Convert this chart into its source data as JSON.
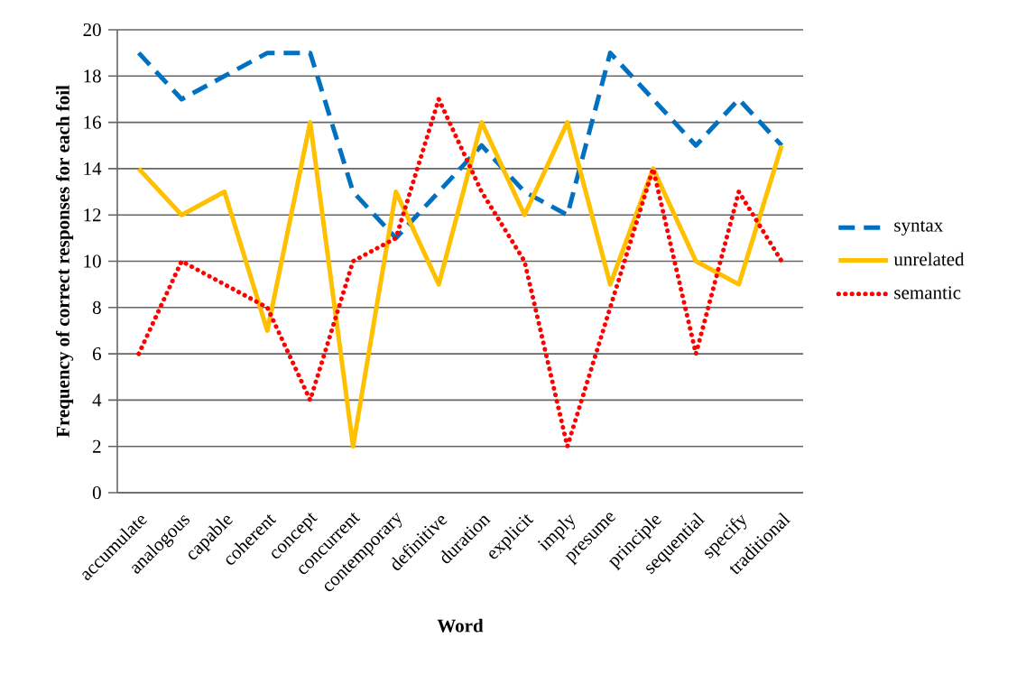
{
  "chart_data": {
    "type": "line",
    "xlabel": "Word",
    "ylabel": "Frequency of correct responses for each foil",
    "categories": [
      "accumulate",
      "analogous",
      "capable",
      "coherent",
      "concept",
      "concurrent",
      "contemporary",
      "definitive",
      "duration",
      "explicit",
      "imply",
      "presume",
      "principle",
      "sequential",
      "specify",
      "traditional"
    ],
    "series": [
      {
        "name": "syntax",
        "color": "#0070c0",
        "line_style": "dashed",
        "values": [
          19,
          17,
          18,
          19,
          19,
          13,
          11,
          13,
          15,
          13,
          12,
          19,
          17,
          15,
          17,
          15
        ]
      },
      {
        "name": "unrelated",
        "color": "#ffc000",
        "line_style": "solid",
        "values": [
          14,
          12,
          13,
          7,
          16,
          2,
          13,
          9,
          16,
          12,
          16,
          9,
          14,
          10,
          9,
          15
        ]
      },
      {
        "name": "semantic",
        "color": "#ff0000",
        "line_style": "dotted",
        "values": [
          6,
          10,
          9,
          8,
          4,
          10,
          11,
          17,
          13,
          10,
          2,
          8,
          14,
          6,
          13,
          10
        ]
      }
    ],
    "ylim": [
      0,
      20
    ],
    "yticks": [
      0,
      2,
      4,
      6,
      8,
      10,
      12,
      14,
      16,
      18,
      20
    ],
    "grid": "y",
    "legend": "right",
    "marker": "none"
  }
}
